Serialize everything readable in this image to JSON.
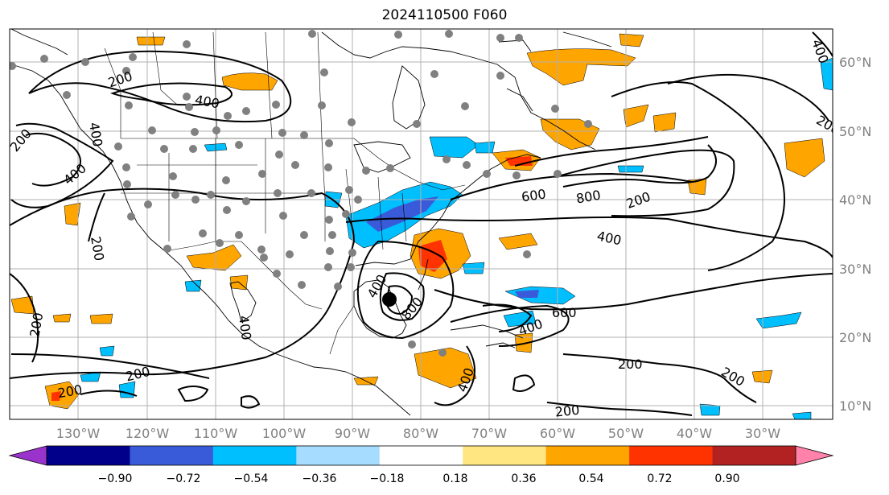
{
  "title": "2024110500 F060",
  "map": {
    "lon_labels": [
      "130°W",
      "120°W",
      "110°W",
      "100°W",
      "90°W",
      "80°W",
      "70°W",
      "60°W",
      "50°W",
      "40°W",
      "30°W"
    ],
    "lat_labels": [
      "60°N",
      "50°N",
      "40°N",
      "30°N",
      "20°N",
      "10°N"
    ],
    "contour_labels": [
      {
        "text": "200"
      },
      {
        "text": "400"
      },
      {
        "text": "400"
      },
      {
        "text": "200"
      },
      {
        "text": "400"
      },
      {
        "text": "200"
      },
      {
        "text": "200"
      },
      {
        "text": "400"
      },
      {
        "text": "600"
      },
      {
        "text": "800"
      },
      {
        "text": "200"
      },
      {
        "text": "400"
      },
      {
        "text": "600"
      },
      {
        "text": "400"
      },
      {
        "text": "200"
      },
      {
        "text": "200"
      },
      {
        "text": "200"
      },
      {
        "text": "400"
      },
      {
        "text": "200"
      },
      {
        "text": "400"
      },
      {
        "text": "800"
      },
      {
        "text": "400"
      },
      {
        "text": "200"
      },
      {
        "text": "200"
      }
    ]
  },
  "colorbar": {
    "labels": [
      "−0.90",
      "−0.72",
      "−0.54",
      "−0.36",
      "−0.18",
      "0.18",
      "0.36",
      "0.54",
      "0.72",
      "0.90"
    ],
    "colors": [
      "#9a33cc",
      "#00008b",
      "#3a5bd9",
      "#00bfff",
      "#a6dcff",
      "#ffffff",
      "#ffe680",
      "#ffa500",
      "#ff3300",
      "#b22222",
      "#ff82ab"
    ],
    "left_extend_color": "#9a33cc",
    "right_extend_color": "#ff82ab"
  },
  "colors": {
    "grid": "#b0b0b0",
    "coast": "#000000",
    "station": "#808080",
    "warm1": "#ffa500",
    "warm2": "#ff3300",
    "warm3": "#b22222",
    "cool1": "#00bfff",
    "cool2": "#3a5bd9",
    "cool3": "#a6dcff"
  }
}
